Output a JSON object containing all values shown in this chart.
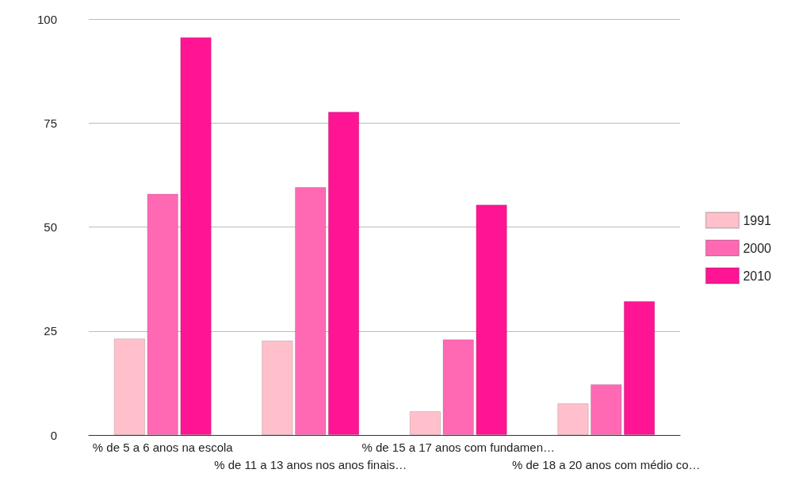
{
  "chart_data": {
    "type": "bar",
    "categories": [
      "% de 5 a 6 anos na escola",
      "% de 11 a 13 anos nos anos finais…",
      "% de 15 a 17 anos com fundamen…",
      "% de 18 a 20 anos com médio co…"
    ],
    "series": [
      {
        "name": "1991",
        "color": "#ffc0cb",
        "values": [
          23.2,
          22.7,
          5.7,
          7.6
        ]
      },
      {
        "name": "2000",
        "color": "#ff69b4",
        "values": [
          58,
          59.6,
          23,
          12.2
        ]
      },
      {
        "name": "2010",
        "color": "#ff1493",
        "values": [
          95.6,
          77.7,
          55.4,
          32.2
        ]
      }
    ],
    "ylim": [
      0,
      100
    ],
    "yticks": [
      0,
      25,
      50,
      75,
      100
    ],
    "grid": "y",
    "legend": "right"
  }
}
